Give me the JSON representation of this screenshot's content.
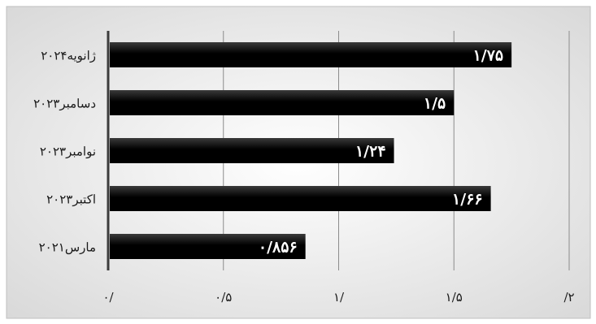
{
  "chart_data": {
    "type": "bar",
    "orientation": "horizontal",
    "title": "",
    "xlabel": "",
    "ylabel": "",
    "categories": [
      "۲۰۲۴ژانویه",
      "۲۰۲۳دسامبر",
      "۲۰۲۳نوامبر",
      "۲۰۲۳اکتبر",
      "۲۰۲۱مارس"
    ],
    "values": [
      1.75,
      1.5,
      1.24,
      1.66,
      0.856
    ],
    "value_labels": [
      "۱/۷۵",
      "۱/۵",
      "۱/۲۴",
      "۱/۶۶",
      "۰/۸۵۶"
    ],
    "xlim": [
      0,
      2
    ],
    "ticks": [
      0,
      0.5,
      1,
      1.5,
      2
    ],
    "tick_labels": [
      "۰/",
      "۰/۵",
      "۱/",
      "۱/۵",
      "/۲"
    ],
    "grid": true,
    "legend": "none",
    "colors": {
      "bar": "#000000",
      "bar_highlight": "#3a3a3a",
      "label_text": "#ffffff",
      "axis_text": "#1a1a1a",
      "grid": "#8c8c8c",
      "axis_line": "#3c3c3c",
      "background_center": "#ffffff",
      "background_edge": "#d9d9d9",
      "border": "#bfbfbf"
    }
  }
}
